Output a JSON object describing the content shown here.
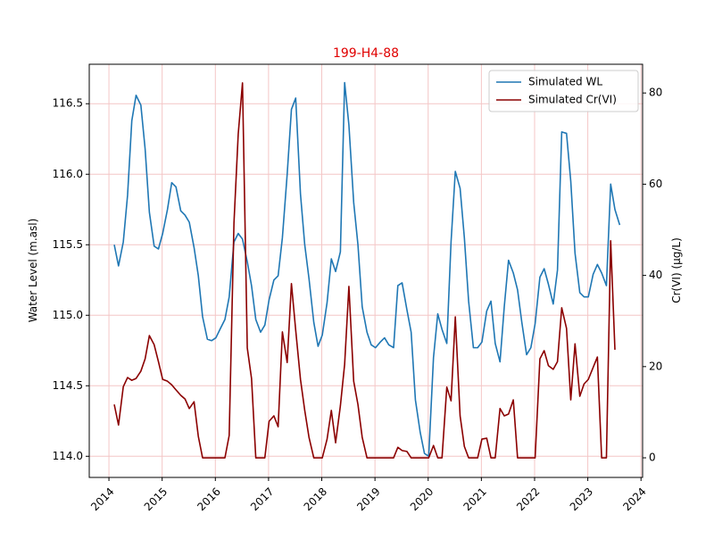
{
  "chart_data": {
    "type": "line",
    "title": "199-H4-88",
    "title_color": "#e00000",
    "y_label": "Water Level (m.asl)",
    "y2_label": "Cr(VI) (µg/L)",
    "x": [
      2014.1,
      2014.18,
      2014.27,
      2014.35,
      2014.43,
      2014.51,
      2014.6,
      2014.68,
      2014.76,
      2014.85,
      2014.93,
      2015.01,
      2015.1,
      2015.18,
      2015.26,
      2015.35,
      2015.43,
      2015.51,
      2015.6,
      2015.68,
      2015.76,
      2015.85,
      2015.93,
      2016.01,
      2016.1,
      2016.18,
      2016.26,
      2016.35,
      2016.43,
      2016.51,
      2016.6,
      2016.68,
      2016.76,
      2016.85,
      2016.93,
      2017.01,
      2017.1,
      2017.18,
      2017.26,
      2017.35,
      2017.43,
      2017.51,
      2017.6,
      2017.68,
      2017.76,
      2017.85,
      2017.93,
      2018.01,
      2018.1,
      2018.18,
      2018.26,
      2018.35,
      2018.43,
      2018.51,
      2018.6,
      2018.68,
      2018.76,
      2018.85,
      2018.93,
      2019.01,
      2019.1,
      2019.18,
      2019.26,
      2019.35,
      2019.43,
      2019.51,
      2019.6,
      2019.68,
      2019.76,
      2019.85,
      2019.93,
      2020.01,
      2020.1,
      2020.18,
      2020.26,
      2020.35,
      2020.43,
      2020.51,
      2020.6,
      2020.68,
      2020.76,
      2020.85,
      2020.93,
      2021.01,
      2021.1,
      2021.18,
      2021.26,
      2021.35,
      2021.43,
      2021.51,
      2021.6,
      2021.68,
      2021.76,
      2021.85,
      2021.93,
      2022.01,
      2022.1,
      2022.18,
      2022.26,
      2022.35,
      2022.43,
      2022.51,
      2022.6,
      2022.68,
      2022.76,
      2022.85,
      2022.93,
      2023.01,
      2023.1,
      2023.18,
      2023.26,
      2023.35,
      2023.43,
      2023.51,
      2023.6
    ],
    "series": [
      {
        "name": "Simulated WL",
        "color": "#1f77b4",
        "axis": "y",
        "values": [
          115.5,
          115.35,
          115.52,
          115.85,
          116.38,
          116.56,
          116.49,
          116.18,
          115.73,
          115.49,
          115.47,
          115.58,
          115.75,
          115.94,
          115.91,
          115.74,
          115.71,
          115.66,
          115.48,
          115.28,
          114.99,
          114.83,
          114.82,
          114.84,
          114.91,
          114.97,
          115.13,
          115.52,
          115.58,
          115.54,
          115.38,
          115.21,
          114.97,
          114.88,
          114.93,
          115.11,
          115.25,
          115.28,
          115.55,
          116.0,
          116.46,
          116.54,
          115.86,
          115.5,
          115.26,
          114.95,
          114.78,
          114.86,
          115.09,
          115.4,
          115.31,
          115.45,
          116.65,
          116.35,
          115.8,
          115.5,
          115.06,
          114.88,
          114.79,
          114.77,
          114.81,
          114.84,
          114.79,
          114.77,
          115.21,
          115.23,
          115.04,
          114.88,
          114.4,
          114.17,
          114.02,
          114.0,
          114.7,
          115.01,
          114.9,
          114.8,
          115.52,
          116.02,
          115.9,
          115.55,
          115.1,
          114.77,
          114.77,
          114.81,
          115.03,
          115.1,
          114.8,
          114.67,
          115.06,
          115.39,
          115.3,
          115.18,
          114.95,
          114.72,
          114.77,
          114.94,
          115.27,
          115.33,
          115.22,
          115.08,
          115.32,
          116.3,
          116.29,
          115.95,
          115.44,
          115.16,
          115.13,
          115.13,
          115.29,
          115.36,
          115.3,
          115.21,
          115.93,
          115.75,
          115.64
        ]
      },
      {
        "name": "Simulated Cr(VI)",
        "color": "#8b0000",
        "axis": "y2",
        "values": [
          11.7,
          7.2,
          15.6,
          17.6,
          17.0,
          17.4,
          19.0,
          21.7,
          26.8,
          24.8,
          21.1,
          17.2,
          16.8,
          16.0,
          14.9,
          13.7,
          12.9,
          10.8,
          12.3,
          4.7,
          0,
          0,
          0,
          0,
          0,
          0,
          4.9,
          51.5,
          71,
          82.2,
          24.1,
          17.4,
          0,
          0,
          0,
          8.0,
          9.2,
          6.8,
          27.6,
          20.9,
          38.2,
          28.0,
          17.2,
          10.4,
          4.5,
          0,
          0,
          0,
          4.1,
          10.4,
          3.3,
          11.4,
          20.5,
          37.6,
          16.8,
          11.7,
          4.5,
          0,
          0,
          0,
          0,
          0,
          0,
          0,
          2.3,
          1.6,
          1.4,
          0,
          0,
          0,
          0,
          0,
          2.7,
          0,
          0,
          15.5,
          12.5,
          30.9,
          9.2,
          2.5,
          0,
          0,
          0,
          4.1,
          4.3,
          0,
          0,
          10.8,
          9.2,
          9.6,
          12.7,
          0,
          0,
          0,
          0,
          0,
          21.7,
          23.5,
          20.2,
          19.4,
          21.1,
          32.9,
          28.4,
          12.7,
          25.0,
          13.5,
          16.2,
          17.2,
          19.8,
          22.1,
          0,
          0,
          47.6,
          23.7,
          null
        ]
      }
    ],
    "xlim": [
      2013.63,
      2024.03
    ],
    "xticks": [
      2014,
      2015,
      2016,
      2017,
      2018,
      2019,
      2020,
      2021,
      2022,
      2023,
      2024
    ],
    "ylim": [
      113.85,
      116.78
    ],
    "yticks": [
      {
        "value": 114,
        "label": "114.0"
      },
      114.5,
      {
        "value": 115,
        "label": "115.0"
      },
      115.5,
      {
        "value": 116,
        "label": "116.0"
      },
      116.5
    ],
    "y2lim": [
      -4.3,
      86.3
    ],
    "y2ticks": [
      0,
      20,
      40,
      60,
      80
    ],
    "grid": true,
    "grid_color": "#f4c6c6",
    "legend": "upper right"
  }
}
